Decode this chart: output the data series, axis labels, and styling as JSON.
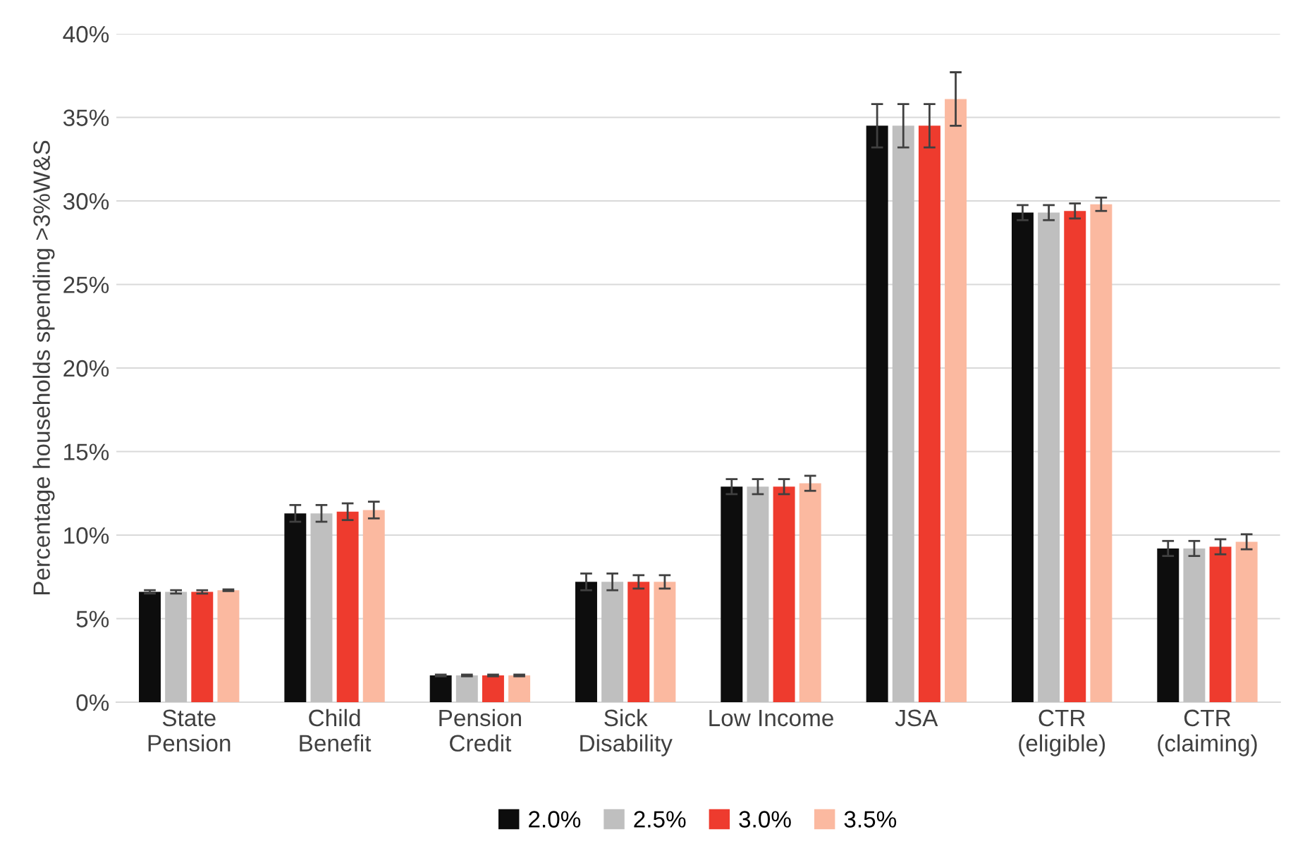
{
  "chart_data": {
    "type": "bar",
    "ylabel": "Percentage households spending >3%W&S",
    "categories": [
      "State\nPension",
      "Child\nBenefit",
      "Pension\nCredit",
      "Sick\nDisability",
      "Low Income",
      "JSA",
      "CTR\n(eligible)",
      "CTR\n(claiming)"
    ],
    "series": [
      {
        "name": "2.0%",
        "color": "#0d0d0d",
        "values": [
          6.6,
          11.3,
          1.6,
          7.2,
          12.9,
          34.5,
          29.3,
          9.2
        ],
        "errors": [
          0.1,
          0.5,
          0.05,
          0.5,
          0.45,
          1.3,
          0.45,
          0.45
        ]
      },
      {
        "name": "2.5%",
        "color": "#bfbfbf",
        "values": [
          6.6,
          11.3,
          1.6,
          7.2,
          12.9,
          34.5,
          29.3,
          9.2
        ],
        "errors": [
          0.1,
          0.5,
          0.05,
          0.5,
          0.45,
          1.3,
          0.45,
          0.45
        ]
      },
      {
        "name": "3.0%",
        "color": "#ee3b2e",
        "values": [
          6.6,
          11.4,
          1.6,
          7.2,
          12.9,
          34.5,
          29.4,
          9.3
        ],
        "errors": [
          0.1,
          0.5,
          0.05,
          0.4,
          0.45,
          1.3,
          0.45,
          0.45
        ]
      },
      {
        "name": "3.5%",
        "color": "#fbb9a0",
        "values": [
          6.7,
          11.5,
          1.6,
          7.2,
          13.1,
          36.1,
          29.8,
          9.6
        ],
        "errors": [
          0.05,
          0.5,
          0.05,
          0.4,
          0.45,
          1.6,
          0.4,
          0.45
        ]
      }
    ],
    "ylim": [
      0,
      40
    ],
    "yticks": [
      {
        "value": 0,
        "label": "0%"
      },
      {
        "value": 5,
        "label": "5%"
      },
      {
        "value": 10,
        "label": "10%"
      },
      {
        "value": 15,
        "label": "15%"
      },
      {
        "value": 20,
        "label": "20%"
      },
      {
        "value": 25,
        "label": "25%"
      },
      {
        "value": 30,
        "label": "30%"
      },
      {
        "value": 35,
        "label": "35%"
      },
      {
        "value": 40,
        "label": "40%"
      }
    ],
    "grid": "y",
    "legend": "bottom"
  }
}
